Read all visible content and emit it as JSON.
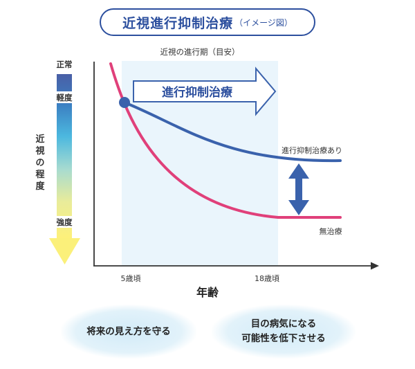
{
  "title": {
    "main": "近視進行抑制治療",
    "sub": "（イメージ図）"
  },
  "period_label": "近視の進行期（目安）",
  "arrow_text": "進行抑制治療",
  "y_axis": {
    "title_chars": [
      "近",
      "視",
      "の",
      "程",
      "度"
    ],
    "normal": "正常",
    "mild": "軽度",
    "severe": "強度"
  },
  "x_axis": {
    "label": "年齢",
    "tick_5": "5歳頃",
    "tick_18": "18歳頃"
  },
  "series": {
    "treated": "進行抑制治療あり",
    "untreated": "無治療"
  },
  "bubbles": {
    "left": "将来の見え方を守る",
    "right_line1": "目の病気になる",
    "right_line2": "可能性を低下させる"
  },
  "colors": {
    "treated": "#3a62ac",
    "untreated": "#e0407a",
    "period_band": "#eaf5fc",
    "arrow": "#2c4f9e"
  }
}
